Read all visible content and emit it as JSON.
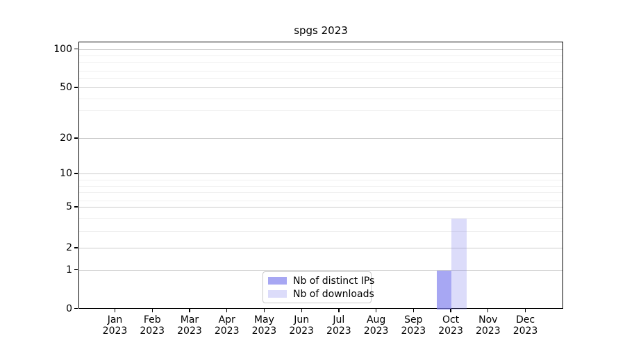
{
  "chart_data": {
    "type": "bar",
    "title": "spgs 2023",
    "categories": [
      "Jan",
      "Feb",
      "Mar",
      "Apr",
      "May",
      "Jun",
      "Jul",
      "Aug",
      "Sep",
      "Oct",
      "Nov",
      "Dec"
    ],
    "year_label": "2023",
    "series": [
      {
        "name": "Nb of distinct IPs",
        "color": "rgba(128,128,238,0.69)",
        "values": [
          0,
          0,
          0,
          0,
          0,
          0,
          0,
          0,
          0,
          1,
          0,
          0
        ]
      },
      {
        "name": "Nb of downloads",
        "color": "rgba(128,128,238,0.28)",
        "values": [
          0,
          0,
          0,
          0,
          0,
          0,
          0,
          0,
          0,
          4,
          0,
          0
        ]
      }
    ],
    "yscale": "symlog",
    "yticks": [
      0,
      1,
      2,
      5,
      10,
      20,
      50,
      100
    ],
    "yticks_minor": [
      3,
      4,
      6,
      7,
      8,
      9,
      30,
      40,
      60,
      70,
      80,
      90
    ],
    "ylim": [
      0,
      130
    ],
    "grid": true,
    "legend_position": "bottom-center",
    "colors": {
      "major_grid": "#cbcbcb",
      "minor_grid": "#efefef",
      "bar_base": "#8080ee",
      "axis": "#000000"
    }
  }
}
